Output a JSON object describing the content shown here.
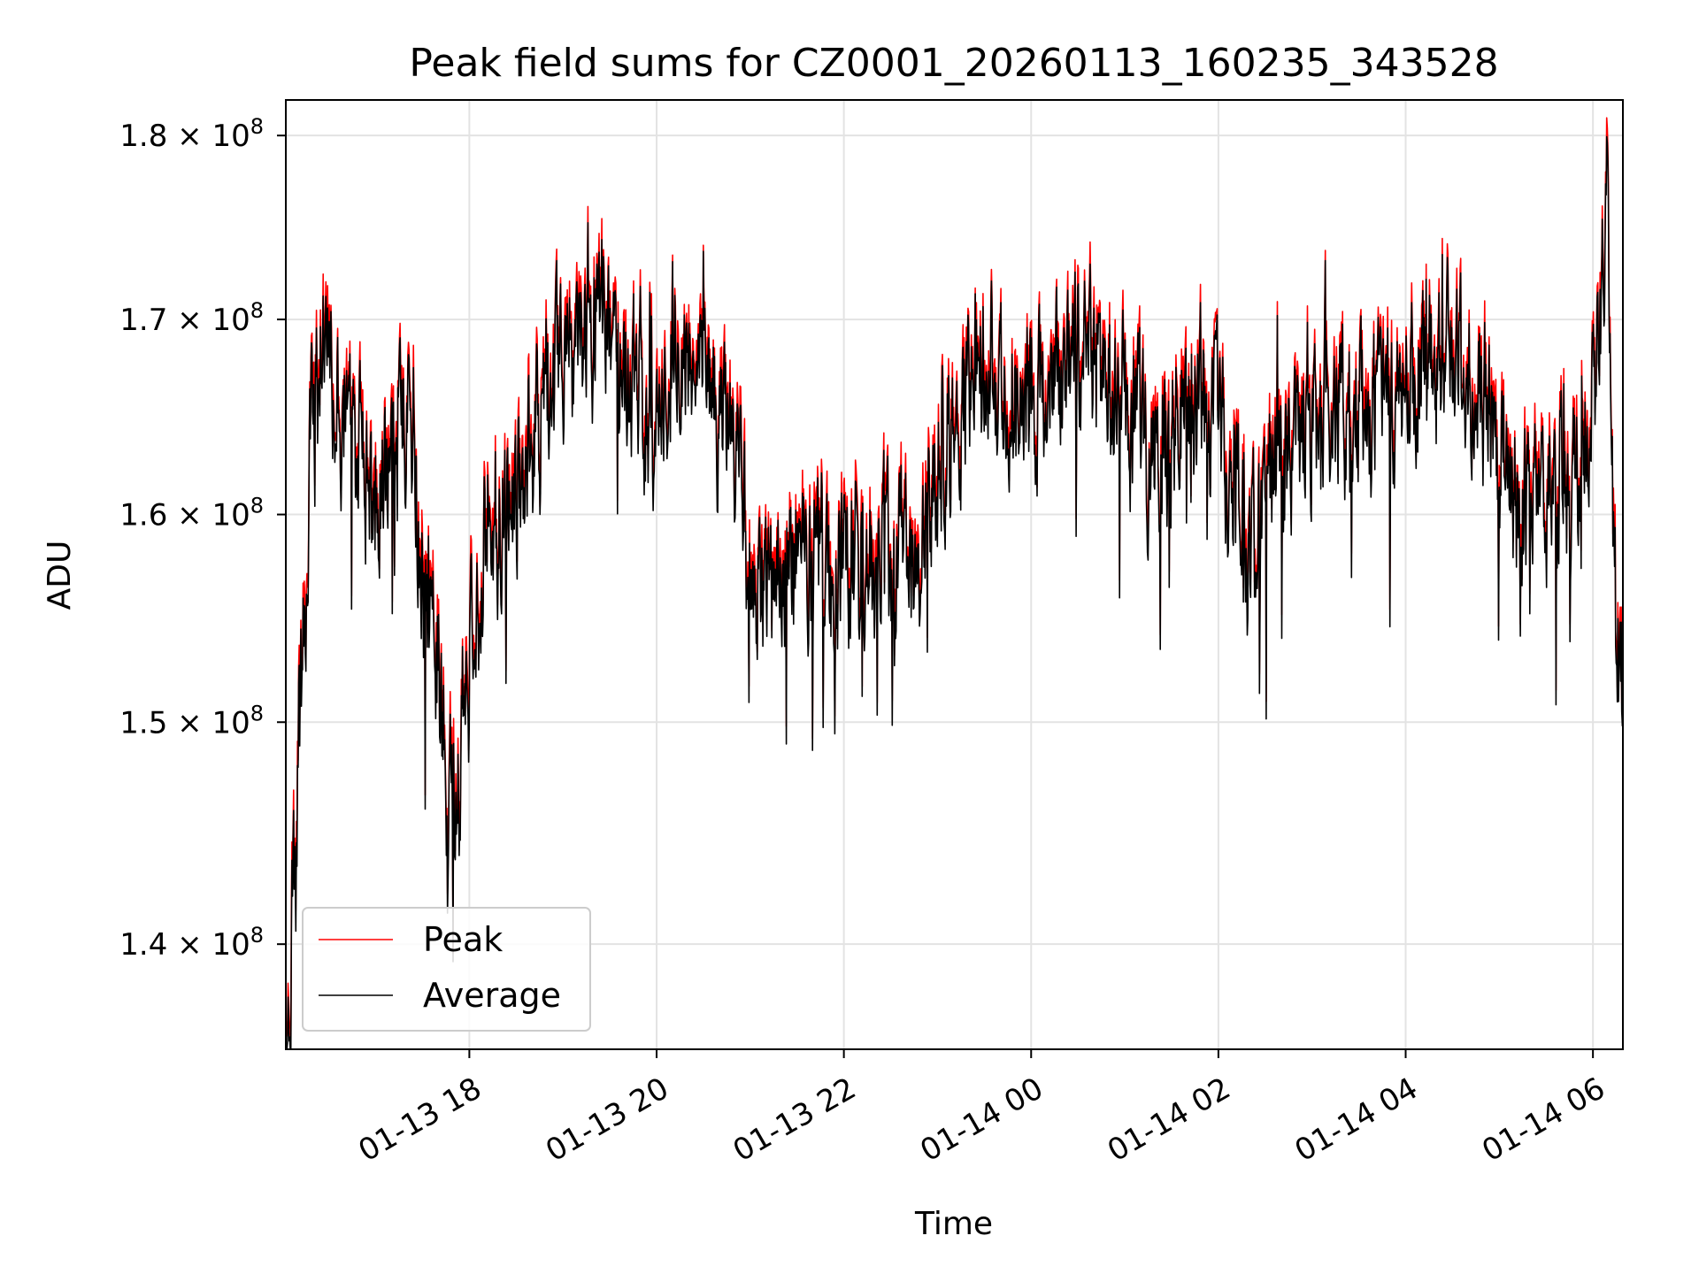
{
  "chart_data": {
    "type": "line",
    "title": "Peak field sums for CZ0001_20260113_160235_343528",
    "xlabel": "Time",
    "ylabel": "ADU",
    "yscale": "log",
    "xlim_hours": [
      16.04,
      6.32
    ],
    "x_range_note": "2026-01-13 16:02 to 2026-01-14 06:19",
    "ylim": [
      135500000,
      182000000
    ],
    "grid": true,
    "legend_position": "lower-left",
    "x_ticks": [
      {
        "hours": 18,
        "label": "01-13 18"
      },
      {
        "hours": 20,
        "label": "01-13 20"
      },
      {
        "hours": 22,
        "label": "01-13 22"
      },
      {
        "hours": 24,
        "label": "01-14 00"
      },
      {
        "hours": 26,
        "label": "01-14 02"
      },
      {
        "hours": 28,
        "label": "01-14 04"
      },
      {
        "hours": 30,
        "label": "01-14 06"
      }
    ],
    "y_ticks": [
      {
        "value": 140000000,
        "mantissa": "1.4"
      },
      {
        "value": 150000000,
        "mantissa": "1.5"
      },
      {
        "value": 160000000,
        "mantissa": "1.6"
      },
      {
        "value": 170000000,
        "mantissa": "1.7"
      },
      {
        "value": 180000000,
        "mantissa": "1.8"
      }
    ],
    "tick_times": "×",
    "tick_base": "10",
    "tick_exponent": "8",
    "series": [
      {
        "name": "Peak",
        "color": "#ff0000"
      },
      {
        "name": "Average",
        "color": "#000000"
      }
    ],
    "trend": {
      "hours": [
        16.04,
        16.1,
        16.2,
        16.3,
        16.4,
        16.5,
        16.6,
        16.8,
        17.0,
        17.2,
        17.3,
        17.4,
        17.5,
        17.6,
        17.7,
        17.8,
        17.9,
        18.0,
        18.1,
        18.2,
        18.3,
        18.5,
        18.7,
        18.9,
        19.0,
        19.2,
        19.4,
        19.6,
        19.8,
        20.0,
        20.2,
        20.4,
        20.6,
        20.8,
        21.0,
        21.2,
        21.4,
        21.6,
        21.8,
        22.0,
        22.3,
        22.6,
        22.8,
        23.0,
        23.2,
        23.4,
        23.6,
        23.8,
        24.0,
        24.2,
        24.4,
        24.6,
        24.8,
        25.0,
        25.2,
        25.4,
        25.6,
        25.8,
        26.0,
        26.2,
        26.4,
        26.6,
        26.8,
        27.0,
        27.2,
        27.4,
        27.6,
        27.8,
        28.0,
        28.2,
        28.4,
        28.6,
        28.8,
        29.0,
        29.2,
        29.4,
        29.6,
        29.8,
        30.0,
        30.1,
        30.15,
        30.2,
        30.25,
        30.32
      ],
      "avg": [
        136000000,
        138500000,
        151000000,
        163000000,
        167500000,
        168000000,
        166000000,
        162500000,
        161500000,
        163000000,
        166000000,
        164500000,
        158000000,
        153000000,
        150000000,
        147000000,
        148000000,
        152000000,
        157000000,
        160500000,
        160000000,
        161500000,
        164500000,
        166500000,
        167000000,
        169500000,
        170000000,
        167000000,
        166500000,
        165000000,
        169000000,
        167000000,
        165000000,
        162500000,
        159000000,
        155500000,
        157000000,
        158500000,
        158000000,
        157500000,
        157500000,
        157000000,
        158500000,
        162000000,
        164500000,
        167500000,
        167500000,
        167000000,
        166000000,
        166500000,
        167500000,
        168500000,
        167500000,
        165500000,
        163500000,
        162500000,
        164500000,
        166000000,
        164500000,
        160000000,
        158000000,
        161500000,
        164000000,
        164500000,
        166500000,
        166000000,
        165000000,
        166000000,
        166000000,
        168000000,
        168500000,
        167500000,
        166000000,
        163500000,
        161000000,
        160000000,
        161000000,
        162000000,
        165500000,
        172000000,
        178000000,
        161000000,
        153000000,
        151000000
      ]
    }
  }
}
